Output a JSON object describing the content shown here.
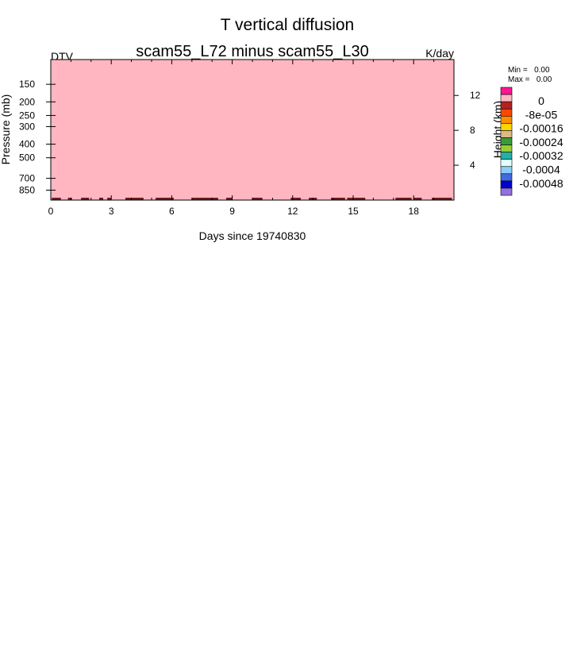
{
  "chart_data": {
    "type": "heatmap",
    "title": "T vertical diffusion",
    "subtitle": "scam55_L72 minus scam55_L30",
    "left_label": "DTV",
    "right_label": "K/day",
    "xlabel": "Days since 19740830",
    "ylabel": "Pressure (mb)",
    "y2label": "Height (km)",
    "xlim": [
      0,
      20
    ],
    "ylim": [
      100,
      1000
    ],
    "y_scale": "log",
    "x_ticks": [
      "0",
      "3",
      "6",
      "9",
      "12",
      "15",
      "18"
    ],
    "y_ticks": [
      "150",
      "200",
      "250",
      "300",
      "400",
      "500",
      "700",
      "850"
    ],
    "y2_ticks": [
      "12",
      "8",
      "4"
    ],
    "stats": {
      "min_label": "Min =   0.00",
      "max_label": "Max =   0.00"
    },
    "fill_color": "#ffb6c1",
    "field_value": 0.0,
    "colorbar": {
      "colors": [
        "#ff1493",
        "#ffb6c1",
        "#b22222",
        "#ff4500",
        "#ff8c00",
        "#ffd700",
        "#deb887",
        "#3a9a3a",
        "#9acd32",
        "#20b2aa",
        "#e0ffff",
        "#87cefa",
        "#4169e1",
        "#0000cd",
        "#9370db"
      ],
      "labels": [
        "0",
        "-8e-05",
        "-0.00016",
        "-0.00024",
        "-0.00032",
        "-0.0004",
        "-0.00048"
      ]
    },
    "bottom_band_segments": [
      [
        0.05,
        0.5
      ],
      [
        0.85,
        1.05
      ],
      [
        1.5,
        1.9
      ],
      [
        2.4,
        2.6
      ],
      [
        2.8,
        3.0
      ],
      [
        3.7,
        4.6
      ],
      [
        5.2,
        6.1
      ],
      [
        7.0,
        8.3
      ],
      [
        8.7,
        9.0
      ],
      [
        10.0,
        10.5
      ],
      [
        11.9,
        12.4
      ],
      [
        12.8,
        13.2
      ],
      [
        13.9,
        14.6
      ],
      [
        14.7,
        15.6
      ],
      [
        17.1,
        17.9
      ],
      [
        18.0,
        18.4
      ],
      [
        18.9,
        19.9
      ]
    ]
  }
}
